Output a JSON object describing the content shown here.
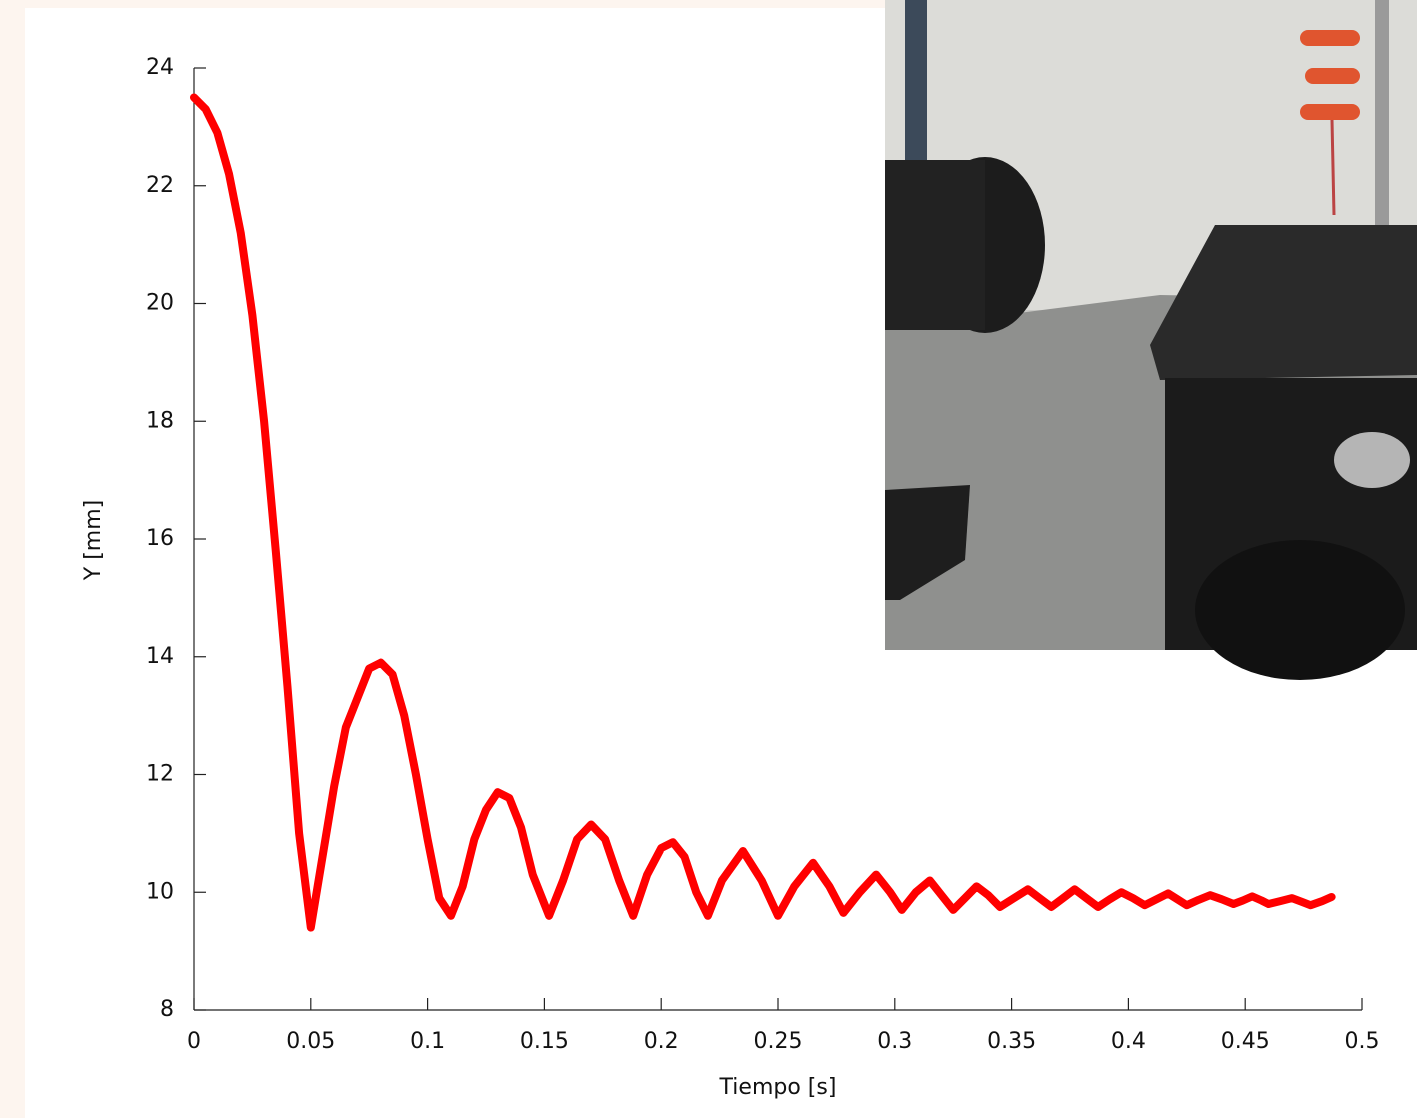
{
  "chart_data": {
    "type": "line",
    "x_label": "Tiempo [s]",
    "y_label": "Y [mm]",
    "x": [
      0,
      0.005,
      0.01,
      0.015,
      0.02,
      0.025,
      0.03,
      0.035,
      0.04,
      0.045,
      0.05,
      0.055,
      0.06,
      0.065,
      0.07,
      0.075,
      0.08,
      0.085,
      0.09,
      0.095,
      0.1,
      0.105,
      0.11,
      0.115,
      0.12,
      0.125,
      0.13,
      0.135,
      0.14,
      0.145,
      0.152,
      0.158,
      0.164,
      0.17,
      0.176,
      0.182,
      0.188,
      0.194,
      0.2,
      0.205,
      0.21,
      0.215,
      0.22,
      0.226,
      0.235,
      0.243,
      0.25,
      0.257,
      0.265,
      0.272,
      0.278,
      0.285,
      0.292,
      0.298,
      0.303,
      0.309,
      0.315,
      0.32,
      0.325,
      0.33,
      0.335,
      0.34,
      0.345,
      0.351,
      0.357,
      0.362,
      0.367,
      0.372,
      0.377,
      0.382,
      0.387,
      0.392,
      0.397,
      0.402,
      0.407,
      0.412,
      0.417,
      0.421,
      0.425,
      0.43,
      0.435,
      0.44,
      0.445,
      0.449,
      0.453,
      0.457,
      0.46,
      0.465,
      0.47,
      0.474,
      0.478,
      0.483,
      0.487
    ],
    "values": [
      23.5,
      23.3,
      22.9,
      22.2,
      21.2,
      19.8,
      18.0,
      15.8,
      13.5,
      11.0,
      9.4,
      10.6,
      11.8,
      12.8,
      13.3,
      13.8,
      13.9,
      13.7,
      13.0,
      12.0,
      10.9,
      9.9,
      9.6,
      10.1,
      10.9,
      11.4,
      11.7,
      11.6,
      11.1,
      10.3,
      9.6,
      10.2,
      10.9,
      11.15,
      10.9,
      10.2,
      9.6,
      10.3,
      10.75,
      10.85,
      10.6,
      10.0,
      9.6,
      10.2,
      10.7,
      10.2,
      9.6,
      10.1,
      10.5,
      10.1,
      9.65,
      10.0,
      10.3,
      10.0,
      9.7,
      10.0,
      10.2,
      9.95,
      9.7,
      9.9,
      10.1,
      9.95,
      9.75,
      9.9,
      10.05,
      9.9,
      9.75,
      9.9,
      10.05,
      9.9,
      9.75,
      9.88,
      10.0,
      9.9,
      9.78,
      9.88,
      9.98,
      9.88,
      9.78,
      9.87,
      9.95,
      9.88,
      9.8,
      9.86,
      9.93,
      9.86,
      9.8,
      9.85,
      9.9,
      9.84,
      9.78,
      9.85,
      9.92
    ],
    "color": "#ff0000",
    "xlim": [
      0,
      0.5
    ],
    "xticks": [
      0,
      0.05,
      0.1,
      0.15,
      0.2,
      0.25,
      0.3,
      0.35,
      0.4,
      0.45,
      0.5
    ],
    "ylim": [
      8,
      24
    ],
    "yticks": [
      8,
      10,
      12,
      14,
      16,
      18,
      20,
      22,
      24
    ],
    "grid": false
  }
}
